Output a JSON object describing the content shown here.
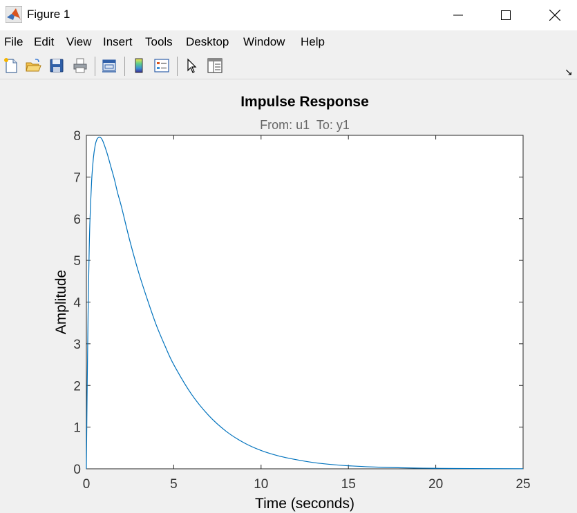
{
  "window": {
    "title": "Figure 1",
    "icon": "matlab-logo-icon"
  },
  "menubar": {
    "items": [
      "File",
      "Edit",
      "View",
      "Insert",
      "Tools",
      "Desktop",
      "Window",
      "Help"
    ],
    "dock_glyph": "↘"
  },
  "toolbar": {
    "buttons": [
      {
        "name": "new-figure-icon"
      },
      {
        "name": "open-file-icon"
      },
      {
        "name": "save-figure-icon"
      },
      {
        "name": "print-figure-icon"
      },
      {
        "name": "link-plot-icon"
      },
      {
        "name": "insert-colorbar-icon"
      },
      {
        "name": "insert-legend-icon"
      },
      {
        "name": "edit-plot-icon"
      },
      {
        "name": "property-inspector-icon"
      }
    ]
  },
  "colors": {
    "line": "#0072bd",
    "axes_background": "#ffffff",
    "figure_background": "#f0f0f0"
  },
  "chart_data": {
    "type": "line",
    "title": "Impulse Response",
    "subtitle": "From: u1  To: y1",
    "xlabel": "Time (seconds)",
    "ylabel": "Amplitude",
    "xlim": [
      0,
      25
    ],
    "ylim": [
      0,
      8
    ],
    "xticks": [
      "0",
      "5",
      "10",
      "15",
      "20",
      "25"
    ],
    "yticks": [
      "0",
      "1",
      "2",
      "3",
      "4",
      "5",
      "6",
      "7",
      "8"
    ],
    "grid": false,
    "series": [
      {
        "x": [
          0,
          0.05,
          0.1,
          0.15,
          0.2,
          0.3,
          0.4,
          0.5,
          0.6,
          0.7,
          0.8,
          0.9,
          1.0,
          1.2,
          1.4,
          1.6,
          1.8,
          2.0,
          2.5,
          3.0,
          3.5,
          4.0,
          4.5,
          5.0,
          6.0,
          7.0,
          8.0,
          9.0,
          10.0,
          11.0,
          12.0,
          13.0,
          14.0,
          15.0,
          16.0,
          17.0,
          18.0,
          19.0,
          20.0,
          22.0,
          25.0
        ],
        "y": [
          0,
          2.1,
          3.8,
          5.0,
          5.9,
          6.9,
          7.45,
          7.75,
          7.9,
          7.95,
          7.95,
          7.9,
          7.8,
          7.55,
          7.25,
          6.95,
          6.6,
          6.3,
          5.45,
          4.7,
          4.05,
          3.45,
          2.95,
          2.5,
          1.8,
          1.28,
          0.9,
          0.63,
          0.44,
          0.31,
          0.22,
          0.15,
          0.105,
          0.073,
          0.051,
          0.035,
          0.025,
          0.017,
          0.012,
          0.006,
          0.002
        ]
      }
    ]
  }
}
